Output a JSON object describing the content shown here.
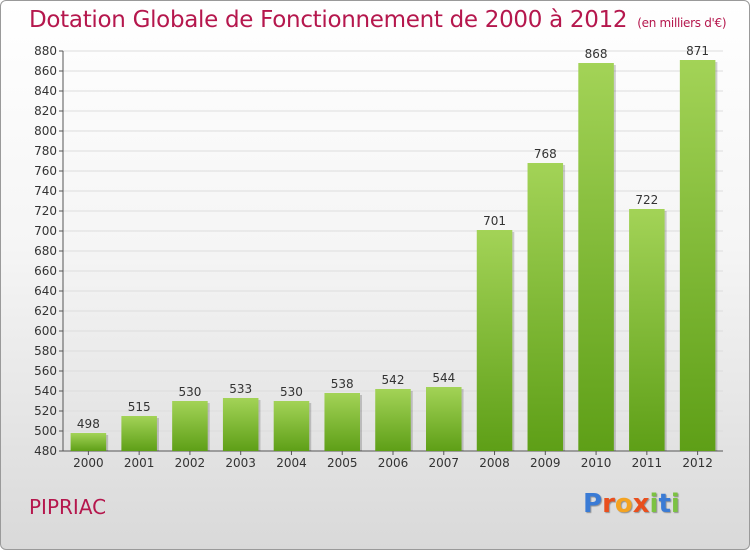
{
  "header": {
    "title": "Dotation Globale de Fonctionnement de 2000 à 2012",
    "subtitle": "(en milliers d'€)"
  },
  "footer": {
    "town": "PIPRIAC",
    "logo_text": "Proxiti"
  },
  "colors": {
    "accent": "#b5174d",
    "bar_light": "#a3d357",
    "bar_dark": "#5e9f17",
    "logo": [
      "#3a7bd5",
      "#e94f1d",
      "#f4a321",
      "#e94f1d",
      "#7cc242",
      "#3a7bd5",
      "#7cc242"
    ]
  },
  "chart_data": {
    "type": "bar",
    "categories": [
      "2000",
      "2001",
      "2002",
      "2003",
      "2004",
      "2005",
      "2006",
      "2007",
      "2008",
      "2009",
      "2010",
      "2011",
      "2012"
    ],
    "values": [
      498,
      515,
      530,
      533,
      530,
      538,
      542,
      544,
      701,
      768,
      868,
      722,
      871
    ],
    "ylim": [
      480,
      880
    ],
    "yticks": [
      480,
      500,
      520,
      540,
      560,
      580,
      600,
      620,
      640,
      660,
      680,
      700,
      720,
      740,
      760,
      780,
      800,
      820,
      840,
      860,
      880
    ],
    "grid": true
  }
}
